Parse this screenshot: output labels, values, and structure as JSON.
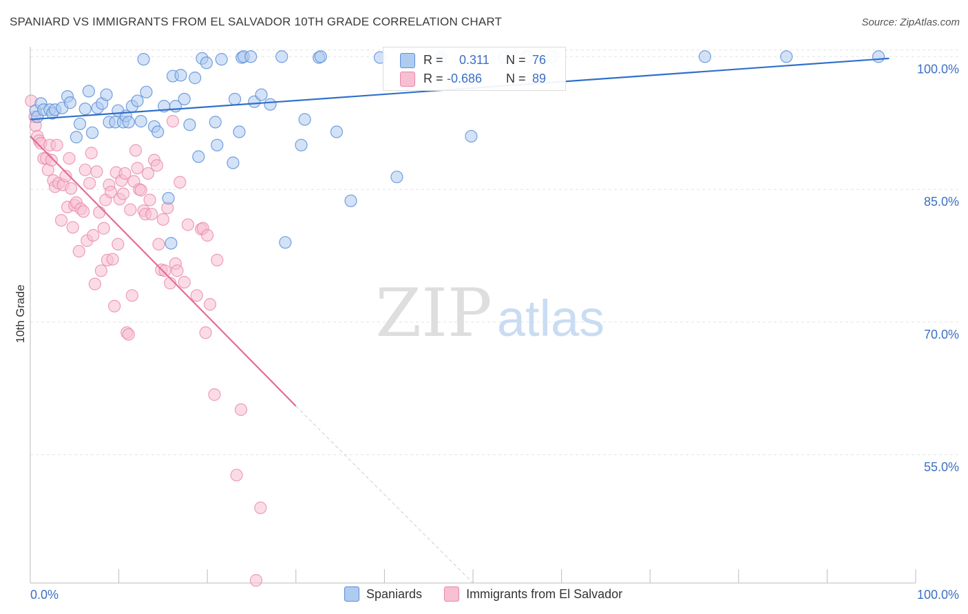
{
  "header": {
    "title": "SPANIARD VS IMMIGRANTS FROM EL SALVADOR 10TH GRADE CORRELATION CHART",
    "source": "Source: ZipAtlas.com"
  },
  "watermark": {
    "zip": "ZIP",
    "atlas": "atlas"
  },
  "colors": {
    "blue_fill": "#aecbf0",
    "blue_stroke": "#5b8fd8",
    "blue_line": "#2f6fc9",
    "pink_fill": "#f7bfd2",
    "pink_stroke": "#e987a8",
    "pink_line": "#e46b95",
    "tick_label": "#3b6fc4",
    "grid": "#e3e3e3"
  },
  "stats": {
    "r_label": "R =",
    "n_label": "N =",
    "rows": [
      {
        "r": "0.311",
        "n": "76"
      },
      {
        "r": "-0.686",
        "n": "89"
      }
    ]
  },
  "legend": {
    "items": [
      "Spaniards",
      "Immigrants from El Salvador"
    ]
  },
  "chart_data": {
    "type": "scatter",
    "title": "SPANIARD VS IMMIGRANTS FROM EL SALVADOR 10TH GRADE CORRELATION CHART",
    "xlabel": "",
    "ylabel": "10th Grade",
    "xlim": [
      0,
      100
    ],
    "ylim": [
      40.5,
      100.8
    ],
    "x_tick_labels": [
      "0.0%",
      "100.0%"
    ],
    "y_ticks": [
      100,
      85,
      70,
      55
    ],
    "y_tick_labels": [
      "100.0%",
      "85.0%",
      "70.0%",
      "55.0%"
    ],
    "grid": true,
    "legend_position": "bottom",
    "series": [
      {
        "name": "Spaniards",
        "R": 0.311,
        "N": 76,
        "trend": {
          "x": [
            0,
            97
          ],
          "y": [
            92.9,
            99.8
          ]
        },
        "points": [
          [
            0.6,
            93.9
          ],
          [
            0.8,
            93.2
          ],
          [
            1.2,
            94.7
          ],
          [
            1.5,
            94.0
          ],
          [
            2.2,
            94.0
          ],
          [
            2.5,
            93.6
          ],
          [
            2.8,
            94.0
          ],
          [
            3.6,
            94.2
          ],
          [
            4.2,
            95.5
          ],
          [
            4.5,
            94.8
          ],
          [
            5.2,
            90.9
          ],
          [
            5.6,
            92.4
          ],
          [
            6.2,
            94.1
          ],
          [
            6.6,
            96.1
          ],
          [
            7.0,
            91.4
          ],
          [
            7.6,
            94.2
          ],
          [
            8.1,
            94.7
          ],
          [
            8.6,
            95.7
          ],
          [
            8.9,
            92.6
          ],
          [
            9.6,
            92.6
          ],
          [
            9.9,
            93.9
          ],
          [
            10.5,
            92.6
          ],
          [
            10.8,
            93.3
          ],
          [
            11.1,
            92.6
          ],
          [
            11.5,
            94.4
          ],
          [
            12.1,
            95.0
          ],
          [
            12.5,
            92.7
          ],
          [
            12.8,
            99.7
          ],
          [
            13.1,
            96.0
          ],
          [
            14.0,
            92.1
          ],
          [
            14.4,
            91.5
          ],
          [
            15.1,
            94.4
          ],
          [
            15.6,
            84.0
          ],
          [
            15.9,
            78.9
          ],
          [
            16.1,
            97.8
          ],
          [
            16.4,
            94.4
          ],
          [
            17.0,
            97.9
          ],
          [
            17.4,
            95.2
          ],
          [
            18.0,
            92.3
          ],
          [
            18.6,
            97.6
          ],
          [
            19.0,
            88.7
          ],
          [
            19.4,
            99.8
          ],
          [
            19.9,
            99.3
          ],
          [
            20.9,
            92.6
          ],
          [
            21.1,
            90.0
          ],
          [
            21.6,
            99.7
          ],
          [
            22.9,
            88.0
          ],
          [
            23.1,
            95.2
          ],
          [
            23.6,
            91.5
          ],
          [
            23.9,
            99.9
          ],
          [
            24.1,
            100.0
          ],
          [
            24.9,
            100.0
          ],
          [
            25.3,
            94.9
          ],
          [
            26.1,
            95.7
          ],
          [
            27.1,
            94.6
          ],
          [
            28.4,
            100.0
          ],
          [
            28.8,
            79.0
          ],
          [
            30.6,
            90.0
          ],
          [
            31.0,
            92.9
          ],
          [
            32.6,
            99.9
          ],
          [
            32.8,
            100.0
          ],
          [
            34.6,
            91.5
          ],
          [
            36.2,
            83.7
          ],
          [
            39.5,
            99.9
          ],
          [
            41.4,
            86.4
          ],
          [
            46.4,
            99.9
          ],
          [
            49.4,
            97.5
          ],
          [
            49.8,
            91.0
          ],
          [
            50.3,
            99.8
          ],
          [
            53.5,
            99.9
          ],
          [
            56.1,
            100.0
          ],
          [
            59.0,
            100.0
          ],
          [
            76.2,
            100.0
          ],
          [
            85.4,
            100.0
          ],
          [
            95.8,
            100.0
          ]
        ]
      },
      {
        "name": "Immigrants from El Salvador",
        "R": -0.686,
        "N": 89,
        "trend": {
          "x": [
            0,
            30
          ],
          "y": [
            91.0,
            60.5
          ]
        },
        "trend_dashed_extension": {
          "x": [
            30,
            50
          ],
          "y": [
            60.5,
            40.5
          ]
        },
        "points": [
          [
            0.1,
            95.0
          ],
          [
            0.5,
            93.2
          ],
          [
            0.6,
            92.2
          ],
          [
            0.8,
            91.0
          ],
          [
            1.0,
            90.5
          ],
          [
            1.2,
            90.2
          ],
          [
            1.5,
            88.5
          ],
          [
            1.8,
            88.5
          ],
          [
            2.0,
            87.2
          ],
          [
            2.2,
            90.0
          ],
          [
            2.4,
            88.3
          ],
          [
            2.6,
            86.0
          ],
          [
            2.8,
            85.3
          ],
          [
            3.0,
            90.0
          ],
          [
            3.2,
            85.7
          ],
          [
            3.5,
            81.5
          ],
          [
            3.7,
            85.5
          ],
          [
            4.0,
            86.5
          ],
          [
            4.2,
            83.0
          ],
          [
            4.4,
            88.5
          ],
          [
            4.6,
            85.1
          ],
          [
            4.8,
            80.7
          ],
          [
            5.0,
            83.2
          ],
          [
            5.2,
            83.5
          ],
          [
            5.5,
            78.0
          ],
          [
            5.7,
            82.8
          ],
          [
            6.0,
            82.5
          ],
          [
            6.2,
            87.2
          ],
          [
            6.4,
            79.2
          ],
          [
            6.7,
            85.7
          ],
          [
            6.9,
            89.1
          ],
          [
            7.1,
            79.8
          ],
          [
            7.3,
            74.3
          ],
          [
            7.5,
            87.0
          ],
          [
            7.8,
            82.4
          ],
          [
            8.0,
            75.8
          ],
          [
            8.3,
            80.6
          ],
          [
            8.5,
            83.8
          ],
          [
            8.7,
            77.0
          ],
          [
            8.9,
            85.5
          ],
          [
            9.1,
            84.7
          ],
          [
            9.3,
            77.1
          ],
          [
            9.5,
            71.8
          ],
          [
            9.7,
            86.9
          ],
          [
            9.9,
            78.8
          ],
          [
            10.1,
            83.9
          ],
          [
            10.3,
            86.0
          ],
          [
            10.5,
            84.5
          ],
          [
            10.7,
            86.8
          ],
          [
            10.9,
            68.8
          ],
          [
            11.1,
            68.6
          ],
          [
            11.3,
            82.7
          ],
          [
            11.5,
            73.0
          ],
          [
            11.7,
            85.9
          ],
          [
            11.9,
            89.4
          ],
          [
            12.1,
            87.4
          ],
          [
            12.3,
            85.0
          ],
          [
            12.5,
            84.9
          ],
          [
            12.8,
            82.6
          ],
          [
            13.0,
            82.2
          ],
          [
            13.3,
            86.8
          ],
          [
            13.5,
            83.8
          ],
          [
            13.7,
            82.2
          ],
          [
            14.0,
            88.3
          ],
          [
            14.3,
            87.7
          ],
          [
            14.5,
            78.8
          ],
          [
            14.8,
            75.9
          ],
          [
            15.0,
            81.6
          ],
          [
            15.2,
            75.8
          ],
          [
            15.5,
            82.9
          ],
          [
            15.8,
            74.4
          ],
          [
            16.1,
            92.7
          ],
          [
            16.4,
            76.6
          ],
          [
            16.6,
            75.8
          ],
          [
            16.9,
            85.8
          ],
          [
            17.4,
            74.5
          ],
          [
            17.8,
            81.0
          ],
          [
            18.8,
            73.0
          ],
          [
            19.3,
            80.5
          ],
          [
            19.5,
            80.6
          ],
          [
            19.8,
            68.8
          ],
          [
            20.0,
            79.8
          ],
          [
            20.3,
            72.0
          ],
          [
            20.8,
            61.8
          ],
          [
            21.1,
            77.0
          ],
          [
            23.3,
            52.7
          ],
          [
            23.8,
            60.1
          ],
          [
            25.5,
            40.8
          ],
          [
            26.0,
            49.0
          ]
        ]
      }
    ]
  }
}
